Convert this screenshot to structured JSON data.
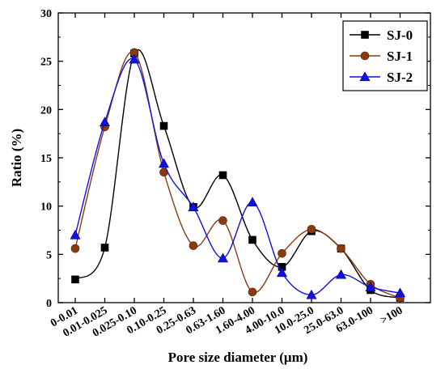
{
  "chart_data": {
    "type": "line",
    "categories": [
      "0-0.01",
      "0.01-0.025",
      "0.025-0.10",
      "0.10-0.25",
      "0.25-0.63",
      "0.63-1.60",
      "1.60-4.00",
      "4.00-10.0",
      "10.0-25.0",
      "25.0-63.0",
      "63.0-100",
      ">100"
    ],
    "series": [
      {
        "name": "SJ-0",
        "color": "#000000",
        "marker": "square",
        "values": [
          2.4,
          5.7,
          25.8,
          18.3,
          9.9,
          13.2,
          6.5,
          3.7,
          7.4,
          5.6,
          1.3,
          0.5
        ]
      },
      {
        "name": "SJ-1",
        "color": "#8B3A0F",
        "marker": "circle",
        "values": [
          5.6,
          18.2,
          25.9,
          13.5,
          5.9,
          8.5,
          1.1,
          5.1,
          7.6,
          5.6,
          1.9,
          0.5
        ]
      },
      {
        "name": "SJ-2",
        "color": "#1010E0",
        "marker": "triangle",
        "values": [
          7.0,
          18.7,
          25.2,
          14.4,
          9.9,
          4.6,
          10.4,
          3.1,
          0.8,
          2.9,
          1.6,
          1.0
        ]
      }
    ],
    "xlabel": "Pore size diameter (μm)",
    "ylabel": "Ratio (%)",
    "ylim": [
      0,
      30
    ],
    "yticks": [
      0,
      5,
      10,
      15,
      20,
      25,
      30
    ],
    "legend_position": "top-right",
    "grid": false
  }
}
